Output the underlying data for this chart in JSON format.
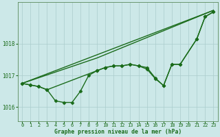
{
  "background_color": "#cce8e8",
  "grid_color": "#aacccc",
  "line_color": "#1a6b1a",
  "title": "Graphe pression niveau de la mer (hPa)",
  "xlim": [
    -0.5,
    23.5
  ],
  "ylim": [
    1015.55,
    1019.3
  ],
  "yticks": [
    1016,
    1017,
    1018
  ],
  "xticks": [
    0,
    1,
    2,
    3,
    4,
    5,
    6,
    7,
    8,
    9,
    10,
    11,
    12,
    13,
    14,
    15,
    16,
    17,
    18,
    19,
    20,
    21,
    22,
    23
  ],
  "series": [
    {
      "x": [
        0,
        23
      ],
      "y": [
        1016.75,
        1019.05
      ],
      "marker": null,
      "linewidth": 1.0
    },
    {
      "x": [
        0,
        9,
        23
      ],
      "y": [
        1016.75,
        1017.55,
        1019.05
      ],
      "marker": null,
      "linewidth": 1.0
    },
    {
      "x": [
        0,
        1,
        2,
        3,
        4,
        5,
        6,
        7,
        8,
        9,
        10,
        11,
        12,
        13,
        14,
        15,
        16,
        17,
        18,
        19,
        21,
        22,
        23
      ],
      "y": [
        1016.75,
        1016.7,
        1016.65,
        1016.55,
        1016.2,
        1016.15,
        1016.15,
        1016.5,
        1017.0,
        1017.15,
        1017.25,
        1017.3,
        1017.3,
        1017.35,
        1017.3,
        1017.2,
        1016.9,
        1016.68,
        1017.35,
        1017.35,
        1018.15,
        1018.85,
        1019.0
      ],
      "marker": "D",
      "markersize": 2.5,
      "linewidth": 1.0
    },
    {
      "x": [
        0,
        1,
        2,
        3,
        9,
        10,
        11,
        12,
        13,
        14,
        15,
        16,
        17,
        18,
        19,
        21,
        22,
        23
      ],
      "y": [
        1016.75,
        1016.7,
        1016.65,
        1016.55,
        1017.15,
        1017.25,
        1017.3,
        1017.3,
        1017.35,
        1017.3,
        1017.25,
        1016.92,
        1016.68,
        1017.35,
        1017.35,
        1018.15,
        1018.85,
        1019.0
      ],
      "marker": "D",
      "markersize": 2.5,
      "linewidth": 1.0
    }
  ]
}
